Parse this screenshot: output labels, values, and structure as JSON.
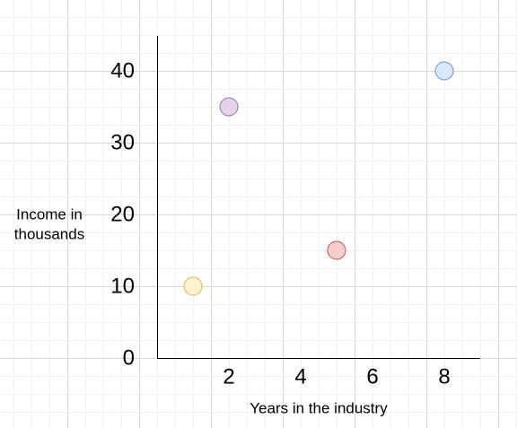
{
  "chart_data": {
    "type": "scatter",
    "title": "",
    "xlabel": "Years in the industry",
    "ylabel": [
      "Income in",
      "thousands"
    ],
    "xlim": [
      -2,
      9
    ],
    "ylim": [
      0,
      45
    ],
    "x_ticks": [
      2,
      4,
      6,
      8
    ],
    "y_ticks": [
      0,
      10,
      20,
      30,
      40
    ],
    "grid": true,
    "legend": "none",
    "points": [
      {
        "x": 1,
        "y": 10,
        "fill": "#fff2cc",
        "stroke": "#d6b656"
      },
      {
        "x": 2,
        "y": 35,
        "fill": "#e1d5e7",
        "stroke": "#9673a6"
      },
      {
        "x": 5,
        "y": 15,
        "fill": "#f8cecc",
        "stroke": "#b85450"
      },
      {
        "x": 8,
        "y": 40,
        "fill": "#dae8fc",
        "stroke": "#6c8ebf"
      }
    ]
  }
}
